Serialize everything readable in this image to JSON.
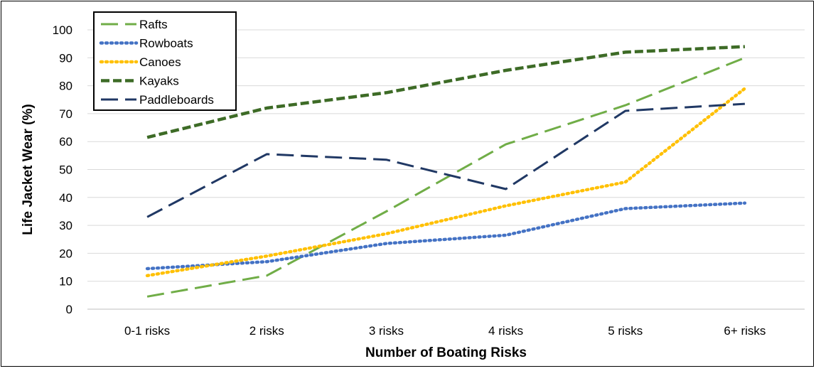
{
  "chart_data": {
    "type": "line",
    "title": "",
    "xlabel": "Number of Boating Risks",
    "ylabel": "Life Jacket Wear (%)",
    "categories": [
      "0-1 risks",
      "2 risks",
      "3 risks",
      "4 risks",
      "5 risks",
      "6+ risks"
    ],
    "ylim": [
      0,
      100
    ],
    "yticks": [
      0,
      10,
      20,
      30,
      40,
      50,
      60,
      70,
      80,
      90,
      100
    ],
    "grid": "horizontal",
    "legend_position": "top-left",
    "series": [
      {
        "name": "Rafts",
        "values": [
          4.5,
          12,
          35,
          59,
          73,
          90
        ],
        "color": "#70ad47",
        "dash": "long-dash"
      },
      {
        "name": "Rowboats",
        "values": [
          14.5,
          17,
          23.5,
          26.5,
          36,
          38
        ],
        "color": "#4472c4",
        "dash": "dot"
      },
      {
        "name": "Canoes",
        "values": [
          12,
          19,
          27,
          37,
          45.5,
          79
        ],
        "color": "#ffc000",
        "dash": "dot"
      },
      {
        "name": "Kayaks",
        "values": [
          61.5,
          72,
          77.5,
          85.5,
          92,
          94
        ],
        "color": "#3d6b26",
        "dash": "dash"
      },
      {
        "name": "Paddleboards",
        "values": [
          33,
          55.5,
          53.5,
          43,
          71,
          73.5
        ],
        "color": "#203864",
        "dash": "long-dash"
      }
    ]
  }
}
